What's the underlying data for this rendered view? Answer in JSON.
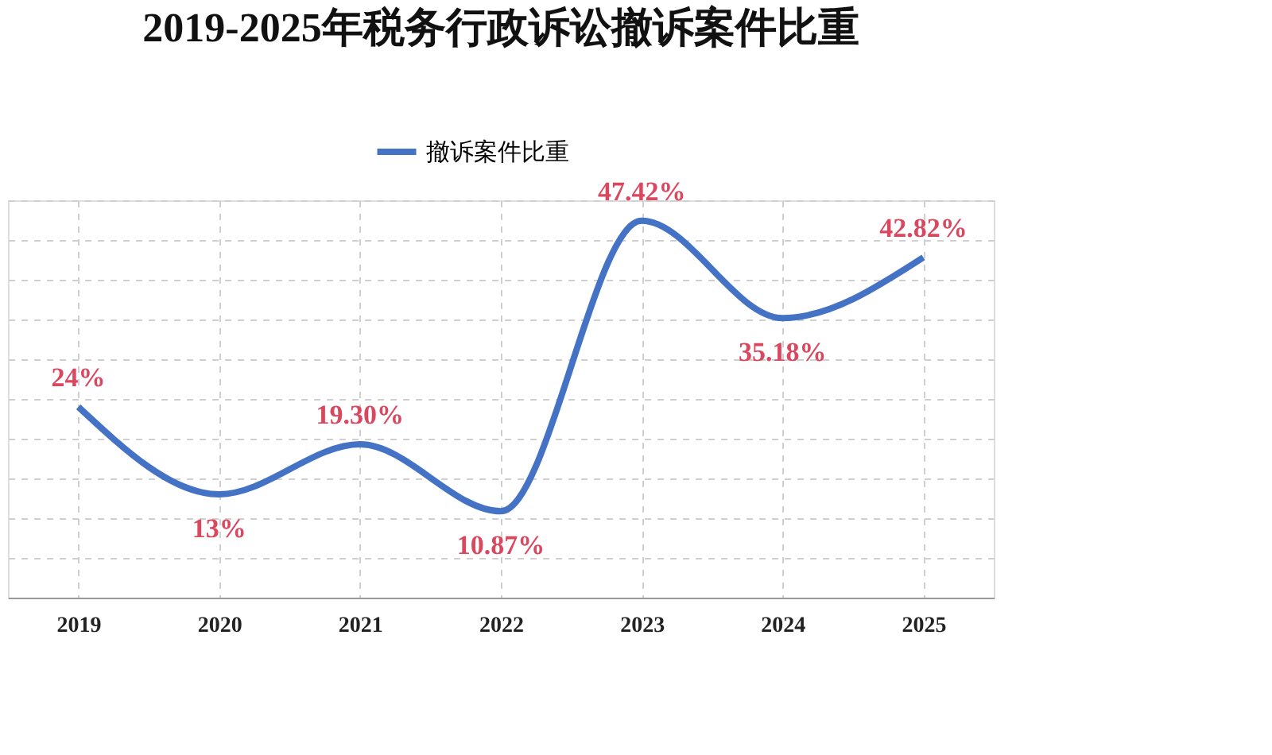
{
  "chart_data": {
    "type": "line",
    "title": "2019-2025年税务行政诉讼撤诉案件比重",
    "categories": [
      "2019",
      "2020",
      "2021",
      "2022",
      "2023",
      "2024",
      "2025"
    ],
    "series": [
      {
        "name": "撤诉案件比重",
        "color": "#4472c4",
        "values": [
          24,
          13,
          19.3,
          10.87,
          47.42,
          35.18,
          42.82
        ],
        "value_labels": [
          "24%",
          "13%",
          "19.30%",
          "10.87%",
          "47.42%",
          "35.18%",
          "42.82%"
        ]
      }
    ],
    "grid": true,
    "legend": "top",
    "tick_labels": "x",
    "marker": "none",
    "line_style": "solid"
  }
}
